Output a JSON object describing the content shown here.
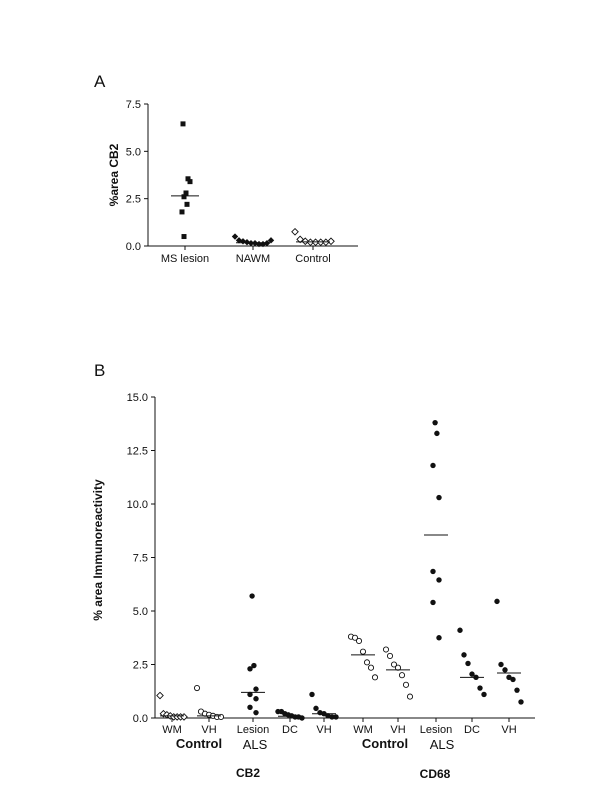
{
  "chart_data": [
    {
      "type": "scatter",
      "panel": "A",
      "ylabel": "%area CB2",
      "ylim": [
        0,
        7.5
      ],
      "yticks": [
        "0.0",
        "2.5",
        "5.0",
        "7.5"
      ],
      "categories": [
        "MS lesion",
        "NAWM",
        "Control"
      ],
      "series": [
        {
          "category": "MS lesion",
          "marker": "filled-square",
          "values": [
            6.45,
            3.55,
            3.4,
            2.8,
            2.6,
            2.2,
            1.8,
            0.5
          ],
          "median": 2.65
        },
        {
          "category": "NAWM",
          "marker": "filled-diamond",
          "values": [
            0.5,
            0.3,
            0.25,
            0.2,
            0.15,
            0.15,
            0.1,
            0.1,
            0.15,
            0.3
          ],
          "median": 0.17
        },
        {
          "category": "Control",
          "marker": "open-diamond",
          "values": [
            0.75,
            0.35,
            0.25,
            0.2,
            0.2,
            0.2,
            0.2,
            0.25
          ],
          "median": 0.22
        }
      ]
    },
    {
      "type": "scatter",
      "panel": "B",
      "ylabel": "% area Immunoreactivity",
      "ylim": [
        0,
        15
      ],
      "yticks": [
        "0.0",
        "2.5",
        "5.0",
        "7.5",
        "10.0",
        "12.5",
        "15.0"
      ],
      "categories": [
        "WM",
        "VH",
        "Lesion",
        "DC",
        "VH",
        "WM",
        "VH",
        "Lesion",
        "DC",
        "VH"
      ],
      "subgroups": [
        {
          "label": "Control",
          "marker": "filled-diamond-open"
        },
        {
          "label": "ALS"
        },
        {
          "label": "Control"
        },
        {
          "label": "ALS"
        }
      ],
      "groups": [
        "CB2",
        "CD68"
      ],
      "series": [
        {
          "category": "WM",
          "group": "CB2",
          "marker": "open-diamond",
          "values": [
            1.05,
            0.2,
            0.15,
            0.1,
            0.05,
            0.05,
            0.05,
            0.05
          ],
          "median": 0.1
        },
        {
          "category": "VH",
          "group": "CB2",
          "marker": "open-circle",
          "values": [
            1.4,
            0.3,
            0.2,
            0.15,
            0.1,
            0.05,
            0.05
          ],
          "median": 0.1
        },
        {
          "category": "Lesion",
          "group": "CB2",
          "marker": "filled-circle",
          "values": [
            5.7,
            2.45,
            2.3,
            1.35,
            1.1,
            0.9,
            0.5,
            0.25
          ],
          "median": 1.2
        },
        {
          "category": "DC",
          "group": "CB2",
          "marker": "filled-circle",
          "values": [
            0.3,
            0.3,
            0.2,
            0.15,
            0.1,
            0.05,
            0.05,
            0.0
          ],
          "median": 0.08
        },
        {
          "category": "VH",
          "group": "CB2",
          "marker": "filled-circle",
          "values": [
            1.1,
            0.45,
            0.25,
            0.2,
            0.1,
            0.05,
            0.05
          ],
          "median": 0.2
        },
        {
          "category": "WM",
          "group": "CD68",
          "marker": "open-circle",
          "values": [
            3.8,
            3.75,
            3.6,
            3.1,
            2.6,
            2.35,
            1.9
          ],
          "median": 2.95
        },
        {
          "category": "VH",
          "group": "CD68",
          "marker": "open-circle",
          "values": [
            3.2,
            2.9,
            2.5,
            2.35,
            2.0,
            1.55,
            1.0
          ],
          "median": 2.25
        },
        {
          "category": "Lesion",
          "group": "CD68",
          "marker": "filled-circle",
          "values": [
            13.8,
            13.3,
            11.8,
            10.3,
            6.85,
            6.45,
            5.4,
            3.75
          ],
          "median": 8.55
        },
        {
          "category": "DC",
          "group": "CD68",
          "marker": "filled-circle",
          "values": [
            4.1,
            2.95,
            2.55,
            2.05,
            1.9,
            1.4,
            1.1
          ],
          "median": 1.9
        },
        {
          "category": "VH",
          "group": "CD68",
          "marker": "filled-circle",
          "values": [
            5.45,
            2.5,
            2.25,
            1.9,
            1.8,
            1.3,
            0.75
          ],
          "median": 2.1
        }
      ]
    }
  ],
  "labels": {
    "panelA": "A",
    "panelB": "B",
    "subgroupB": [
      "Control",
      "ALS",
      "Control",
      "ALS"
    ],
    "groupB": [
      "CB2",
      "CD68"
    ]
  }
}
